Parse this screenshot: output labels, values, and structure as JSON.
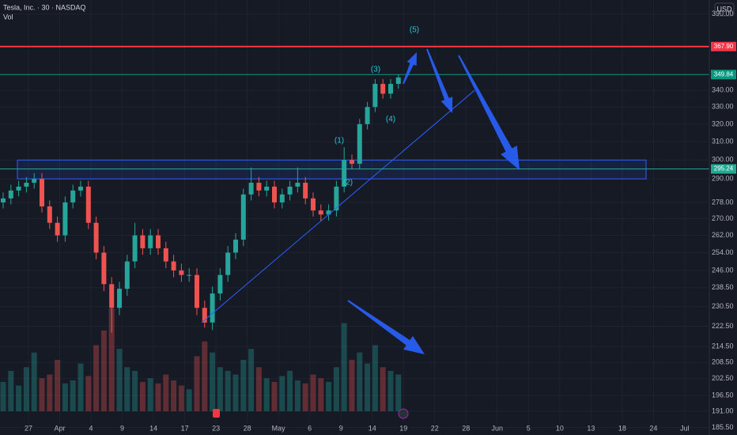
{
  "chart_data": {
    "type": "candlestick",
    "title": "Tesla, Inc. · 30 · NASDAQ",
    "volume_label": "Vol",
    "currency": "USD",
    "log_scale": true,
    "grid": true,
    "up_color": "#26a69a",
    "down_color": "#ef5350",
    "categories": [
      "27",
      "Apr",
      "4",
      "9",
      "14",
      "17",
      "23",
      "28",
      "May",
      "6",
      "9",
      "14",
      "19",
      "22",
      "28",
      "Jun",
      "5",
      "10",
      "13",
      "18",
      "24",
      "Jul"
    ],
    "ylim": [
      183,
      400
    ],
    "yticks": [
      {
        "value": 390,
        "label": "390.00"
      },
      {
        "value": 340,
        "label": "340.00"
      },
      {
        "value": 330,
        "label": "330.00"
      },
      {
        "value": 320,
        "label": "320.00"
      },
      {
        "value": 310,
        "label": "310.00"
      },
      {
        "value": 300,
        "label": "300.00"
      },
      {
        "value": 290,
        "label": "290.00"
      },
      {
        "value": 278,
        "label": "278.00"
      },
      {
        "value": 270,
        "label": "270.00"
      },
      {
        "value": 262,
        "label": "262.00"
      },
      {
        "value": 254,
        "label": "254.00"
      },
      {
        "value": 246,
        "label": "246.00"
      },
      {
        "value": 238.5,
        "label": "238.50"
      },
      {
        "value": 230.5,
        "label": "230.50"
      },
      {
        "value": 222.5,
        "label": "222.50"
      },
      {
        "value": 214.5,
        "label": "214.50"
      },
      {
        "value": 208.5,
        "label": "208.50"
      },
      {
        "value": 202.5,
        "label": "202.50"
      },
      {
        "value": 196.5,
        "label": "196.50"
      },
      {
        "value": 191,
        "label": "191.00"
      },
      {
        "value": 185.5,
        "label": "185.50"
      }
    ],
    "open": [
      278,
      280,
      284,
      286,
      288,
      290,
      276,
      268,
      262,
      278,
      284,
      286,
      268,
      254,
      240,
      230,
      238,
      250,
      262,
      256,
      262,
      256,
      250,
      246,
      244,
      244,
      230,
      224,
      236,
      244,
      254,
      260,
      282,
      288,
      284,
      286,
      278,
      282,
      286,
      288,
      280,
      274,
      272,
      274,
      286,
      300,
      298,
      320,
      330,
      344,
      338,
      344
    ],
    "high": [
      283,
      287,
      289,
      291,
      293,
      293,
      279,
      271,
      281,
      287,
      289,
      289,
      271,
      257,
      243,
      241,
      253,
      268,
      265,
      265,
      265,
      259,
      253,
      249,
      247,
      247,
      233,
      239,
      247,
      257,
      263,
      285,
      296,
      291,
      289,
      289,
      285,
      289,
      296,
      291,
      283,
      277,
      277,
      289,
      307,
      303,
      323,
      333,
      347,
      347,
      347,
      350
    ],
    "low": [
      275,
      277,
      281,
      283,
      285,
      273,
      265,
      259,
      259,
      275,
      281,
      265,
      251,
      237,
      220,
      227,
      235,
      247,
      253,
      253,
      253,
      247,
      243,
      241,
      241,
      227,
      222,
      221,
      233,
      241,
      251,
      257,
      279,
      281,
      281,
      275,
      275,
      279,
      283,
      277,
      271,
      269,
      269,
      271,
      283,
      295,
      295,
      317,
      327,
      335,
      335,
      341
    ],
    "close": [
      280,
      284,
      286,
      288,
      290,
      276,
      268,
      262,
      278,
      284,
      286,
      268,
      254,
      240,
      230,
      238,
      250,
      262,
      256,
      262,
      256,
      250,
      246,
      244,
      244,
      230,
      224,
      236,
      244,
      254,
      260,
      282,
      288,
      284,
      286,
      278,
      282,
      286,
      288,
      280,
      274,
      272,
      274,
      286,
      300,
      298,
      320,
      330,
      344,
      338,
      344,
      348
    ],
    "volume": [
      40,
      55,
      35,
      60,
      80,
      45,
      50,
      70,
      38,
      42,
      65,
      48,
      90,
      110,
      140,
      85,
      60,
      55,
      40,
      45,
      38,
      50,
      42,
      35,
      30,
      75,
      95,
      80,
      60,
      55,
      50,
      70,
      85,
      60,
      45,
      40,
      48,
      55,
      42,
      38,
      50,
      45,
      40,
      60,
      120,
      70,
      80,
      65,
      90,
      60,
      55,
      50
    ],
    "levels": [
      {
        "value": 367.9,
        "label": "367.90",
        "color": "#f23645"
      },
      {
        "value": 349.84,
        "label": "349.84",
        "color": "#089981"
      },
      {
        "value": 295.24,
        "label": "295.24",
        "color": "#22ab94"
      }
    ],
    "zone": [
      290,
      300
    ],
    "trendline": [
      224,
      340
    ],
    "waves": [
      "(1)",
      "(2)",
      "(3)",
      "(4)",
      "(5)"
    ]
  }
}
